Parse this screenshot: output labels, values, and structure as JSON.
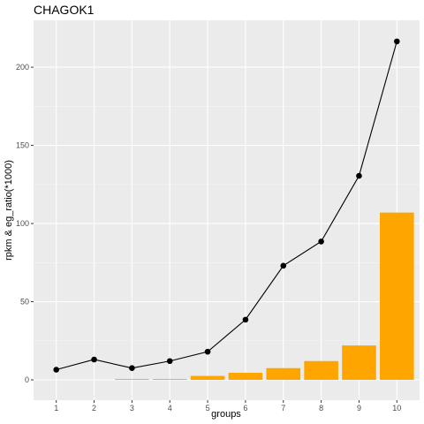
{
  "chart_data": {
    "type": "bar+line",
    "title": "CHAGOK1",
    "xlabel": "groups",
    "ylabel": "rpkm & eg_ratio(*1000)",
    "categories": [
      "1",
      "2",
      "3",
      "4",
      "5",
      "6",
      "7",
      "8",
      "9",
      "10"
    ],
    "ylim": [
      -13,
      230
    ],
    "yticks": [
      0,
      50,
      100,
      150,
      200
    ],
    "grid": true,
    "legend": "none",
    "series": [
      {
        "kind": "bar",
        "values": [
          0,
          0,
          0.5,
          0.5,
          2.5,
          4.5,
          7.5,
          12,
          22,
          107
        ],
        "color": "#FFA500"
      },
      {
        "kind": "line",
        "values": [
          6.5,
          13,
          7.5,
          12,
          18,
          38.5,
          73,
          88.5,
          130.5,
          216.5
        ],
        "color": "#000000"
      }
    ]
  },
  "colors": {
    "panel_background": "#EBEBEB",
    "grid_major": "#FFFFFF",
    "bar": "#FFA500",
    "line": "#000000"
  }
}
